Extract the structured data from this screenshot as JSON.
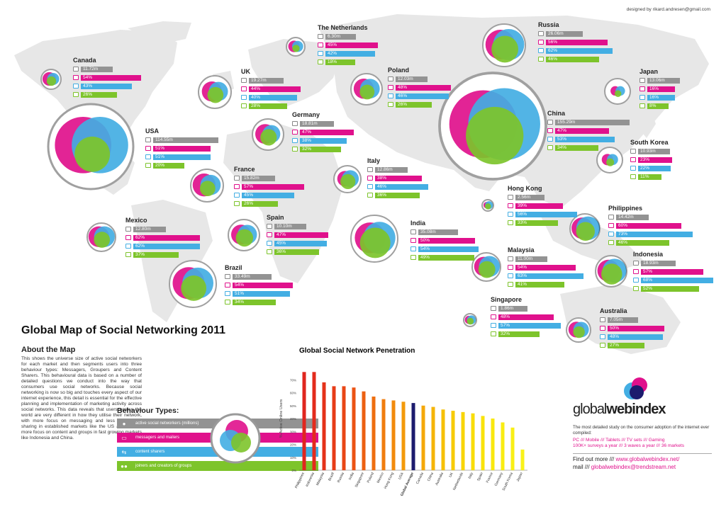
{
  "credit": "designed by rikard.andresen@gmail.com",
  "colors": {
    "active": "#939393",
    "messengers": "#e0118c",
    "sharers": "#43aee3",
    "joiners": "#7dc42b",
    "average": "#1c1b6e"
  },
  "countries": [
    {
      "name": "Canada",
      "active": "11.72m",
      "messengers": "54%",
      "sharers": "43%",
      "joiners": "26%",
      "m": 54,
      "s": 43,
      "j": 26
    },
    {
      "name": "USA",
      "active": "114.55m",
      "messengers": "51%",
      "sharers": "51%",
      "joiners": "20%",
      "m": 51,
      "s": 51,
      "j": 20
    },
    {
      "name": "Mexico",
      "active": "12.80m",
      "messengers": "62%",
      "sharers": "62%",
      "joiners": "37%",
      "m": 62,
      "s": 62,
      "j": 37
    },
    {
      "name": "Brazil",
      "active": "33.49m",
      "messengers": "54%",
      "sharers": "51%",
      "joiners": "34%",
      "m": 54,
      "s": 51,
      "j": 34
    },
    {
      "name": "UK",
      "active": "19.27m",
      "messengers": "44%",
      "sharers": "40%",
      "joiners": "28%",
      "m": 44,
      "s": 40,
      "j": 28
    },
    {
      "name": "France",
      "active": "15.82m",
      "messengers": "57%",
      "sharers": "45%",
      "joiners": "26%",
      "m": 57,
      "s": 45,
      "j": 26
    },
    {
      "name": "Spain",
      "active": "10.10m",
      "messengers": "47%",
      "sharers": "45%",
      "joiners": "36%",
      "m": 47,
      "s": 45,
      "j": 36
    },
    {
      "name": "The Netherlands",
      "active": "6.30m",
      "messengers": "45%",
      "sharers": "42%",
      "joiners": "18%",
      "m": 45,
      "s": 42,
      "j": 18
    },
    {
      "name": "Germany",
      "active": "18.81m",
      "messengers": "47%",
      "sharers": "38%",
      "joiners": "32%",
      "m": 47,
      "s": 38,
      "j": 32
    },
    {
      "name": "Italy",
      "active": "12.86m",
      "messengers": "38%",
      "sharers": "46%",
      "joiners": "36%",
      "m": 38,
      "s": 46,
      "j": 36
    },
    {
      "name": "Poland",
      "active": "12.03m",
      "messengers": "48%",
      "sharers": "46%",
      "joiners": "26%",
      "m": 48,
      "s": 46,
      "j": 26
    },
    {
      "name": "India",
      "active": "35.08m",
      "messengers": "50%",
      "sharers": "54%",
      "joiners": "49%",
      "m": 50,
      "s": 54,
      "j": 49
    },
    {
      "name": "Russia",
      "active": "26.06m",
      "messengers": "56%",
      "sharers": "62%",
      "joiners": "46%",
      "m": 56,
      "s": 62,
      "j": 46
    },
    {
      "name": "China",
      "active": "155.29m",
      "messengers": "47%",
      "sharers": "53%",
      "joiners": "34%",
      "m": 47,
      "s": 53,
      "j": 34
    },
    {
      "name": "Japan",
      "active": "13.06m",
      "messengers": "16%",
      "sharers": "16%",
      "joiners": "8%",
      "m": 16,
      "s": 16,
      "j": 8
    },
    {
      "name": "South Korea",
      "active": "10.93m",
      "messengers": "23%",
      "sharers": "22%",
      "joiners": "11%",
      "m": 23,
      "s": 22,
      "j": 11
    },
    {
      "name": "Hong Kong",
      "active": "2.56m",
      "messengers": "39%",
      "sharers": "56%",
      "joiners": "33%",
      "m": 39,
      "s": 56,
      "j": 33
    },
    {
      "name": "Philippines",
      "active": "14.42m",
      "messengers": "60%",
      "sharers": "73%",
      "joiners": "46%",
      "m": 60,
      "s": 73,
      "j": 46
    },
    {
      "name": "Malaysia",
      "active": "11.00m",
      "messengers": "54%",
      "sharers": "63%",
      "joiners": "41%",
      "m": 54,
      "s": 63,
      "j": 41
    },
    {
      "name": "Indonesia",
      "active": "18.93m",
      "messengers": "57%",
      "sharers": "68%",
      "joiners": "52%",
      "m": 57,
      "s": 68,
      "j": 52
    },
    {
      "name": "Singapore",
      "active": "1.86m",
      "messengers": "48%",
      "sharers": "57%",
      "joiners": "32%",
      "m": 48,
      "s": 57,
      "j": 32
    },
    {
      "name": "Australia",
      "active": "7.05m",
      "messengers": "50%",
      "sharers": "48%",
      "joiners": "27%",
      "m": 50,
      "s": 48,
      "j": 27
    }
  ],
  "title": "Global Map of Social Networking 2011",
  "about": {
    "heading": "About the Map",
    "text": "This shows the universe size of active social networkers for each market and then segments users into three behaviour types: Messagers, Groupers and Content Sharers. This behavioural data is based on a number of detailed questions we conduct into the way that consumers use social networks. Because social networking is now so big and touches every aspect of our internet experience, this detail is essential for the effective planning and implementation of marketing activity across social networks. This data reveals that users across the world are very different in how they utilise their network, with more focus on messaging and less on content sharing in established markets like the US and UK but more focus on content and groups in fast growing markets like Indonesia and China."
  },
  "behaviour": {
    "heading": "Behaviour Types:",
    "items": [
      {
        "label": "active social networkers (millions)",
        "color": "#939393",
        "icon": "person-icon"
      },
      {
        "label": "messagers and mailers",
        "color": "#e0118c",
        "icon": "speech-bubble-icon"
      },
      {
        "label": "content sharers",
        "color": "#43aee3",
        "icon": "share-arrows-icon"
      },
      {
        "label": "joiners and creators of groups",
        "color": "#7dc42b",
        "icon": "group-icon"
      }
    ]
  },
  "chart_data": {
    "type": "bar",
    "title": "Global Social Network Penetration",
    "ylabel": "% Active Online Users",
    "ylim": [
      0,
      80
    ],
    "yticks": [
      "0%",
      "10%",
      "20%",
      "30%",
      "40%",
      "50%",
      "60%",
      "70%"
    ],
    "categories": [
      "Philippines",
      "Indonesia",
      "Malaysia",
      "Brazil",
      "Russia",
      "India",
      "Singapore",
      "Poland",
      "Mexico",
      "Hong Kong",
      "USA",
      "Global Average",
      "Canada",
      "China",
      "Australia",
      "UK",
      "Netherlands",
      "Italy",
      "Spain",
      "France",
      "Germany",
      "South Korea",
      "Japan"
    ],
    "values": [
      76,
      76,
      68,
      65,
      65,
      64,
      61,
      57,
      55,
      54,
      53,
      52,
      50,
      49,
      47,
      46,
      45,
      44,
      42,
      40,
      37,
      33,
      16
    ],
    "highlight": "Global Average",
    "grid": false
  },
  "gwi": {
    "logo_light": "global",
    "logo_bold": "webindex",
    "desc": "The most detailed study on the consumer adoption of the internet ever compiled:",
    "line1": "PC  ///  Mobile  ///  Tablets  ///  TV sets  ///  Gaming",
    "line2": "100K+ surveys a year  ///  3 waves a year  ///  36 markets",
    "find_label": "Find out more  ///",
    "find_url": "www.globalwebindex.net/",
    "mail_label": "mail  ///",
    "mail_addr": "globalwebindex@trendstream.net"
  }
}
